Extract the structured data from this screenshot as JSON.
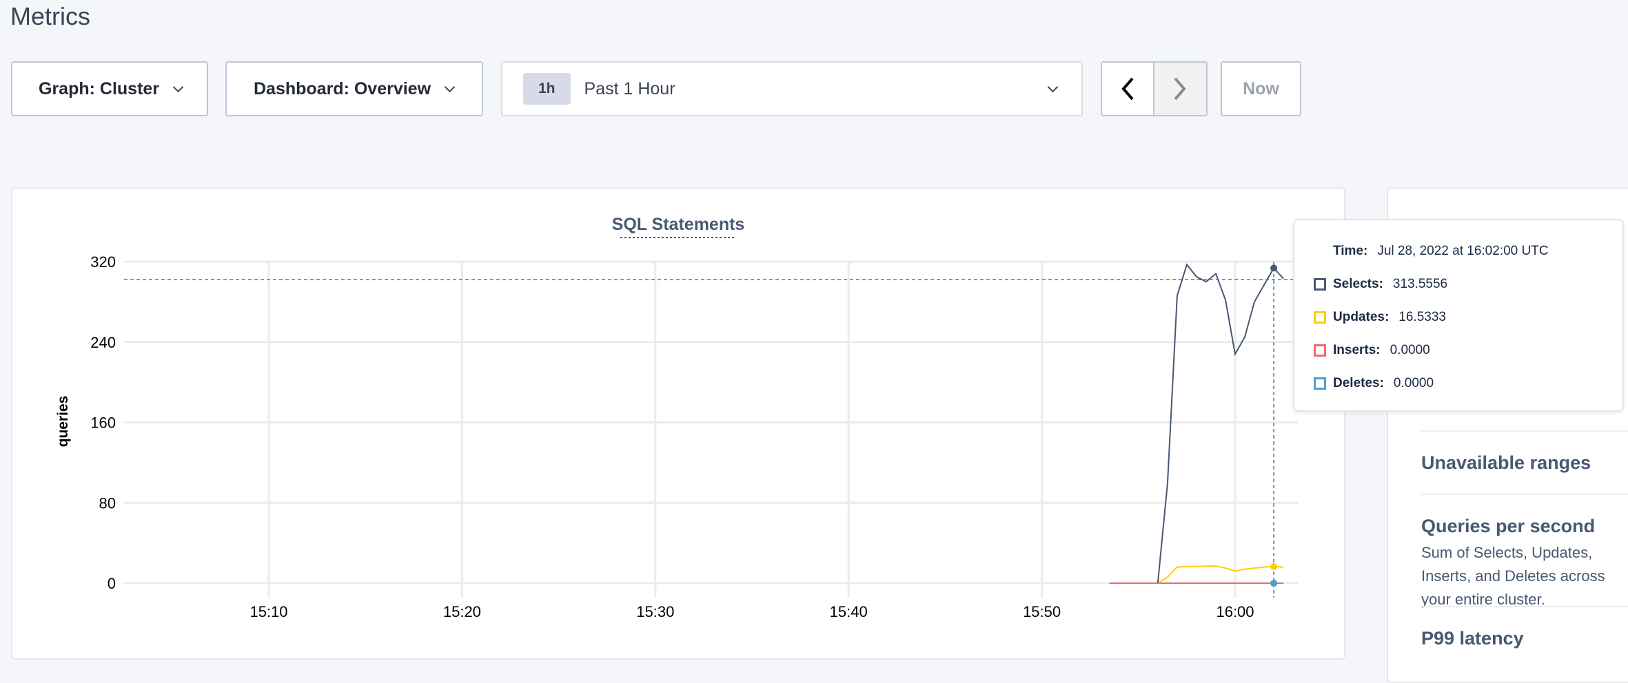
{
  "page": {
    "title": "Metrics"
  },
  "controls": {
    "graph_label": "Graph: Cluster",
    "dashboard_label": "Dashboard: Overview",
    "range_badge": "1h",
    "range_label": "Past 1 Hour",
    "prev_icon": "chevron-left-icon",
    "next_icon": "chevron-right-icon",
    "now_label": "Now"
  },
  "chart_data": {
    "type": "line",
    "title": "SQL Statements",
    "ylabel": "queries",
    "xlabel": "",
    "ylim": [
      0,
      320
    ],
    "yticks": [
      "0",
      "80",
      "160",
      "240",
      "320"
    ],
    "xticks": [
      "15:10",
      "15:20",
      "15:30",
      "15:40",
      "15:50",
      "16:00"
    ],
    "grid": true,
    "series": [
      {
        "name": "Selects",
        "color": "#475872",
        "x": [
          "15:56:00",
          "15:56:30",
          "15:57:00",
          "15:57:30",
          "15:58:00",
          "15:58:30",
          "15:59:00",
          "15:59:30",
          "16:00:00",
          "16:00:30",
          "16:01:00",
          "16:01:30",
          "16:02:00",
          "16:02:30"
        ],
        "values": [
          0,
          99,
          286,
          317,
          305,
          300,
          308,
          282,
          228,
          245,
          280,
          297,
          313.5556,
          303
        ]
      },
      {
        "name": "Updates",
        "color": "#ffcd02",
        "x": [
          "15:56:00",
          "15:56:30",
          "15:57:00",
          "15:57:30",
          "15:58:00",
          "15:58:30",
          "15:59:00",
          "15:59:30",
          "16:00:00",
          "16:00:30",
          "16:01:00",
          "16:01:30",
          "16:02:00",
          "16:02:30"
        ],
        "values": [
          0,
          6,
          16,
          16.5,
          16.5,
          17,
          17,
          15,
          12,
          14,
          15,
          16,
          16.5333,
          16
        ]
      },
      {
        "name": "Inserts",
        "color": "#f16969",
        "x": [
          "15:53:30",
          "16:02:30"
        ],
        "values": [
          0,
          0
        ]
      },
      {
        "name": "Deletes",
        "color": "#4e9fd1",
        "x": [
          "15:53:30",
          "16:02:30"
        ],
        "values": [
          0,
          0
        ]
      }
    ]
  },
  "tooltip": {
    "time_label": "Time:",
    "time_value": "Jul 28, 2022 at 16:02:00 UTC",
    "rows": [
      {
        "label": "Selects:",
        "value": "313.5556",
        "color": "#475872"
      },
      {
        "label": "Updates:",
        "value": "16.5333",
        "color": "#ffcd02"
      },
      {
        "label": "Inserts:",
        "value": "0.0000",
        "color": "#f16969"
      },
      {
        "label": "Deletes:",
        "value": "0.0000",
        "color": "#4e9fd1"
      }
    ]
  },
  "side": {
    "items": [
      {
        "title": "Unavailable ranges"
      },
      {
        "title": "Queries per second",
        "desc": "Sum of Selects, Updates, Inserts, and Deletes across your entire cluster."
      },
      {
        "title": "P99 latency"
      }
    ]
  }
}
